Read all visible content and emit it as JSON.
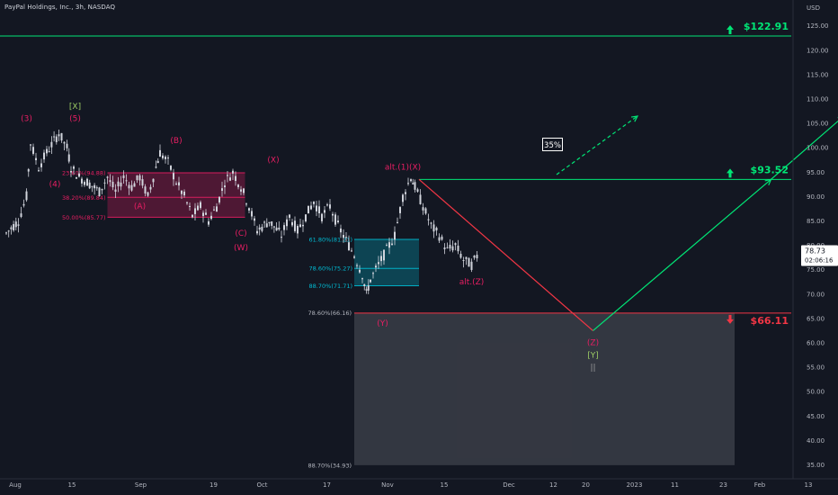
{
  "header": {
    "title": "PayPal Holdings, Inc., 3h, NASDAQ",
    "currency": "USD"
  },
  "colors": {
    "background": "#131722",
    "green": "#4caf50",
    "green_bright": "#00e676",
    "red": "#f23645",
    "magenta": "#e91e63",
    "cyan": "#00bcd4",
    "olive": "#9ccc65",
    "gray_box": "#3a3d47",
    "candle": "#d1d4dc"
  },
  "chart_data": {
    "type": "candlestick",
    "title": "PayPal Holdings, Inc., 3h, NASDAQ",
    "currency": "USD",
    "ylim": [
      33,
      128
    ],
    "y_ticks": [
      "35.00",
      "40.00",
      "45.00",
      "50.00",
      "55.00",
      "60.00",
      "65.00",
      "70.00",
      "75.00",
      "80.00",
      "85.00",
      "90.00",
      "95.00",
      "100.00",
      "105.00",
      "110.00",
      "115.00",
      "120.00",
      "125.00"
    ],
    "x_ticks": [
      {
        "label": "Aug",
        "day": 0
      },
      {
        "label": "15",
        "day": 14
      },
      {
        "label": "Sep",
        "day": 31
      },
      {
        "label": "19",
        "day": 49
      },
      {
        "label": "Oct",
        "day": 61
      },
      {
        "label": "17",
        "day": 77
      },
      {
        "label": "Nov",
        "day": 92
      },
      {
        "label": "15",
        "day": 106
      },
      {
        "label": "Dec",
        "day": 122
      },
      {
        "label": "12",
        "day": 133
      },
      {
        "label": "20",
        "day": 141
      },
      {
        "label": "2023",
        "day": 153
      },
      {
        "label": "11",
        "day": 163
      },
      {
        "label": "23",
        "day": 175
      },
      {
        "label": "Feb",
        "day": 184
      },
      {
        "label": "13",
        "day": 196
      }
    ],
    "last_price": {
      "value": 78.73,
      "label": "78.73",
      "countdown": "02:06:16"
    },
    "price_path": [
      [
        0,
        82.5
      ],
      [
        3,
        85
      ],
      [
        5,
        90
      ],
      [
        6,
        101
      ],
      [
        8,
        96
      ],
      [
        10,
        99
      ],
      [
        13,
        103
      ],
      [
        15,
        100
      ],
      [
        16,
        96
      ],
      [
        18,
        94
      ],
      [
        20,
        93
      ],
      [
        23,
        91
      ],
      [
        25,
        94
      ],
      [
        27,
        91
      ],
      [
        29,
        94
      ],
      [
        31,
        92
      ],
      [
        33,
        94
      ],
      [
        35,
        90
      ],
      [
        37,
        96
      ],
      [
        38,
        99
      ],
      [
        40,
        97
      ],
      [
        42,
        93
      ],
      [
        44,
        90
      ],
      [
        46,
        86
      ],
      [
        48,
        88
      ],
      [
        50,
        85
      ],
      [
        52,
        88
      ],
      [
        54,
        93
      ],
      [
        56,
        95
      ],
      [
        58,
        92
      ],
      [
        60,
        88
      ],
      [
        62,
        83
      ],
      [
        65,
        85
      ],
      [
        68,
        82
      ],
      [
        70,
        86
      ],
      [
        72,
        83
      ],
      [
        74,
        86
      ],
      [
        76,
        89
      ],
      [
        78,
        86
      ],
      [
        80,
        88
      ],
      [
        82,
        84
      ],
      [
        84,
        81
      ],
      [
        86,
        78
      ],
      [
        88,
        74
      ],
      [
        89,
        70
      ],
      [
        90,
        73
      ],
      [
        92,
        76
      ],
      [
        94,
        79
      ],
      [
        96,
        82
      ],
      [
        98,
        90
      ],
      [
        100,
        94
      ],
      [
        101,
        92
      ],
      [
        103,
        88
      ],
      [
        105,
        84
      ],
      [
        107,
        82
      ],
      [
        109,
        79
      ],
      [
        111,
        80
      ],
      [
        113,
        77
      ],
      [
        115,
        76
      ],
      [
        117,
        78.7
      ]
    ],
    "horizontal_levels": [
      {
        "price": 122.91,
        "label": "$122.91",
        "color": "green",
        "arrow": "up"
      },
      {
        "price": 93.52,
        "label": "$93.52",
        "color": "green",
        "arrow": "up"
      },
      {
        "price": 66.11,
        "label": "$66.11",
        "color": "red",
        "arrow": "down"
      }
    ],
    "fib_zones": [
      {
        "color": "magenta",
        "x0": 25,
        "x1": 59,
        "top": 94.88,
        "bottom": 85.77,
        "levels": [
          {
            "price": 94.88,
            "label": "23.60%(94.88)"
          },
          {
            "price": 89.84,
            "label": "38.20%(89.84)"
          },
          {
            "price": 85.77,
            "label": "50.00%(85.77)"
          }
        ]
      },
      {
        "color": "cyan",
        "x0": 86,
        "x1": 102,
        "top": 81.21,
        "bottom": 71.71,
        "levels": [
          {
            "price": 81.21,
            "label": "61.80%(81.21)"
          },
          {
            "price": 75.27,
            "label": "78.60%(75.27)"
          },
          {
            "price": 71.71,
            "label": "88.70%(71.71)"
          }
        ]
      }
    ],
    "target_box": {
      "x0": 86,
      "x1": 180,
      "top": 66.16,
      "bottom": 34.93,
      "labels": [
        {
          "price": 66.16,
          "label": "78.60%(66.16)"
        },
        {
          "price": 34.93,
          "label": "88.70%(34.93)"
        }
      ]
    },
    "projection_lines": [
      {
        "color": "red",
        "from": [
          102,
          93.52
        ],
        "to": [
          145,
          62.5
        ],
        "dashed": false
      },
      {
        "color": "green",
        "from": [
          145,
          62.5
        ],
        "to": [
          189,
          93.52
        ],
        "dashed": false
      },
      {
        "color": "green",
        "from": [
          189,
          93.52
        ],
        "to": [
          207,
          106.5
        ],
        "dashed": false
      },
      {
        "color": "green",
        "from": [
          136,
          94.5
        ],
        "to": [
          156,
          106.5
        ],
        "dashed": true
      }
    ],
    "wave_labels": [
      {
        "text": "[X]",
        "day": 17,
        "price": 108,
        "color": "olive"
      },
      {
        "text": "(5)",
        "day": 17,
        "price": 105.5,
        "color": "magenta"
      },
      {
        "text": "(3)",
        "day": 5,
        "price": 105.5,
        "color": "magenta"
      },
      {
        "text": "(4)",
        "day": 12,
        "price": 92,
        "color": "magenta"
      },
      {
        "text": "(B)",
        "day": 42,
        "price": 101,
        "color": "magenta"
      },
      {
        "text": "(A)",
        "day": 33,
        "price": 87.5,
        "color": "magenta"
      },
      {
        "text": "(X)",
        "day": 66,
        "price": 97,
        "color": "magenta"
      },
      {
        "text": "(C)",
        "day": 58,
        "price": 82,
        "color": "magenta"
      },
      {
        "text": "(W)",
        "day": 58,
        "price": 79,
        "color": "magenta"
      },
      {
        "text": "alt.(1)(X)",
        "day": 98,
        "price": 95.5,
        "color": "magenta"
      },
      {
        "text": "alt.(Z)",
        "day": 115,
        "price": 72,
        "color": "magenta"
      },
      {
        "text": "(Y)",
        "day": 93,
        "price": 63.5,
        "color": "magenta"
      },
      {
        "text": "(Z)",
        "day": 145,
        "price": 59.5,
        "color": "magenta"
      },
      {
        "text": "[Y]",
        "day": 145,
        "price": 57,
        "color": "olive"
      },
      {
        "text": "||",
        "day": 145,
        "price": 54.5,
        "color": "gray"
      }
    ],
    "annotation_box": {
      "text": "35%",
      "day": 135,
      "price": 100.5
    }
  }
}
